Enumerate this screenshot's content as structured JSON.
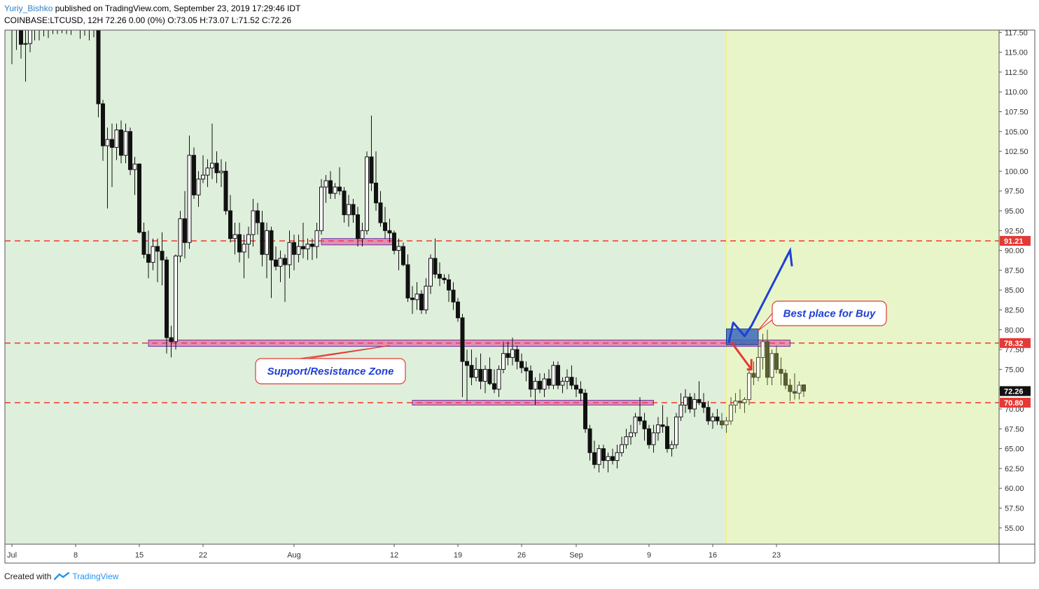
{
  "header": {
    "author": "Yuriy_Bishko",
    "published_text": "published on TradingView.com, September 23, 2019 17:29:46 IDT",
    "symbol_line": "COINBASE:LTCUSD, 12H  72.26 0.00 (0%)  O:73.05 H:73.07 L:71.52 C:72.26"
  },
  "footer": {
    "created_with": "Created with",
    "brand": "TradingView"
  },
  "colors": {
    "background_green": "#deefdb",
    "background_yellow": "#e8f5c8",
    "yellow_divider": "#f3f08a",
    "dashed_red": "#f44336",
    "zone_pink": "#e83e8c",
    "buy_box": "#3b6ab8",
    "arrow_blue": "#1f3fd6",
    "arrow_red": "#e53935",
    "candle": "#111111"
  },
  "chart_data": {
    "type": "candlestick",
    "ylim": [
      52.5,
      117.5
    ],
    "y_ticks": [
      "55.00",
      "57.50",
      "60.00",
      "62.50",
      "65.00",
      "67.50",
      "70.00",
      "72.50",
      "75.00",
      "77.50",
      "80.00",
      "82.50",
      "85.00",
      "87.50",
      "90.00",
      "92.50",
      "95.00",
      "97.50",
      "100.00",
      "102.50",
      "105.00",
      "107.50",
      "110.00",
      "112.50",
      "115.00",
      "117.50"
    ],
    "x_ticks": [
      {
        "label": "Jul",
        "t": 0
      },
      {
        "label": "8",
        "t": 14
      },
      {
        "label": "15",
        "t": 28
      },
      {
        "label": "22",
        "t": 42
      },
      {
        "label": "Aug",
        "t": 62
      },
      {
        "label": "12",
        "t": 84
      },
      {
        "label": "19",
        "t": 98
      },
      {
        "label": "26",
        "t": 112
      },
      {
        "label": "Sep",
        "t": 124
      },
      {
        "label": "9",
        "t": 140
      },
      {
        "label": "16",
        "t": 154
      },
      {
        "label": "23",
        "t": 168
      }
    ],
    "horizontal_levels": [
      {
        "value": 91.21,
        "label": "91.21"
      },
      {
        "value": 78.32,
        "label": "78.32"
      },
      {
        "value": 70.8,
        "label": "70.80"
      }
    ],
    "current_price": {
      "value": 72.26,
      "label": "72.26"
    },
    "zones": [
      {
        "t0": 30,
        "t1": 171,
        "low": 77.9,
        "high": 78.7
      },
      {
        "t0": 68,
        "t1": 84,
        "low": 90.7,
        "high": 91.5
      },
      {
        "t0": 88,
        "t1": 141,
        "low": 70.5,
        "high": 71.1
      }
    ],
    "buy_box": {
      "t0": 157,
      "t1": 164,
      "low": 78.1,
      "high": 80.1
    },
    "forecast_zone_start": 157,
    "annotations": [
      {
        "id": "sr",
        "text": "Support/Resistance Zone"
      },
      {
        "id": "buy",
        "text": "Best place for Buy"
      }
    ],
    "candles": [
      {
        "o": 118.8,
        "h": 119.5,
        "l": 113.5,
        "c": 117.9
      },
      {
        "o": 118.2,
        "h": 120.5,
        "l": 115.3,
        "c": 119.4
      },
      {
        "o": 118.5,
        "h": 119.6,
        "l": 114.2,
        "c": 116.0
      },
      {
        "o": 116.0,
        "h": 117.9,
        "l": 111.3,
        "c": 116.1
      },
      {
        "o": 116.1,
        "h": 119.4,
        "l": 115.0,
        "c": 118.8
      },
      {
        "o": 118.9,
        "h": 119.8,
        "l": 116.5,
        "c": 117.9
      },
      {
        "o": 117.9,
        "h": 119.3,
        "l": 116.5,
        "c": 118.2
      },
      {
        "o": 118.2,
        "h": 119.2,
        "l": 117.0,
        "c": 118.1
      },
      {
        "o": 118.1,
        "h": 119.3,
        "l": 116.8,
        "c": 118.5
      },
      {
        "o": 118.5,
        "h": 119.0,
        "l": 117.3,
        "c": 117.9
      },
      {
        "o": 117.9,
        "h": 119.0,
        "l": 117.3,
        "c": 118.5
      },
      {
        "o": 118.5,
        "h": 119.5,
        "l": 117.4,
        "c": 118.6
      },
      {
        "o": 118.6,
        "h": 119.2,
        "l": 117.3,
        "c": 117.9
      },
      {
        "o": 117.9,
        "h": 118.9,
        "l": 117.2,
        "c": 118.6
      },
      {
        "o": 118.6,
        "h": 119.5,
        "l": 117.8,
        "c": 118.3
      },
      {
        "o": 118.3,
        "h": 119.0,
        "l": 116.7,
        "c": 118.5
      },
      {
        "o": 118.5,
        "h": 119.8,
        "l": 117.1,
        "c": 118.0
      },
      {
        "o": 118.0,
        "h": 118.8,
        "l": 116.5,
        "c": 117.8
      },
      {
        "o": 117.8,
        "h": 118.5,
        "l": 116.9,
        "c": 118.1
      },
      {
        "o": 118.1,
        "h": 118.5,
        "l": 106.8,
        "c": 108.5
      },
      {
        "o": 108.5,
        "h": 109.0,
        "l": 101.3,
        "c": 103.2
      },
      {
        "o": 103.2,
        "h": 105.5,
        "l": 95.3,
        "c": 104.0
      },
      {
        "o": 104.0,
        "h": 106.0,
        "l": 98.0,
        "c": 103.0
      },
      {
        "o": 103.0,
        "h": 106.0,
        "l": 101.4,
        "c": 105.2
      },
      {
        "o": 105.2,
        "h": 106.4,
        "l": 101.0,
        "c": 102.0
      },
      {
        "o": 102.0,
        "h": 106.0,
        "l": 101.0,
        "c": 105.0
      },
      {
        "o": 105.0,
        "h": 105.5,
        "l": 99.5,
        "c": 100.2
      },
      {
        "o": 100.2,
        "h": 101.8,
        "l": 97.0,
        "c": 100.9
      },
      {
        "o": 100.9,
        "h": 101.0,
        "l": 92.1,
        "c": 92.3
      },
      {
        "o": 92.3,
        "h": 93.5,
        "l": 89.0,
        "c": 89.5
      },
      {
        "o": 89.5,
        "h": 92.5,
        "l": 86.5,
        "c": 88.5
      },
      {
        "o": 88.5,
        "h": 91.5,
        "l": 87.5,
        "c": 90.5
      },
      {
        "o": 90.5,
        "h": 91.5,
        "l": 86.0,
        "c": 89.9
      },
      {
        "o": 89.9,
        "h": 92.3,
        "l": 85.6,
        "c": 88.8
      },
      {
        "o": 88.8,
        "h": 89.2,
        "l": 77.0,
        "c": 79.0
      },
      {
        "o": 79.0,
        "h": 80.5,
        "l": 76.5,
        "c": 78.5
      },
      {
        "o": 78.5,
        "h": 89.5,
        "l": 77.5,
        "c": 89.3
      },
      {
        "o": 89.3,
        "h": 95.0,
        "l": 88.5,
        "c": 94.0
      },
      {
        "o": 94.0,
        "h": 97.5,
        "l": 89.0,
        "c": 91.0
      },
      {
        "o": 91.0,
        "h": 104.5,
        "l": 90.2,
        "c": 102.0
      },
      {
        "o": 102.0,
        "h": 103.0,
        "l": 96.5,
        "c": 97.0
      },
      {
        "o": 97.0,
        "h": 100.0,
        "l": 95.5,
        "c": 99.0
      },
      {
        "o": 99.0,
        "h": 102.0,
        "l": 98.5,
        "c": 99.5
      },
      {
        "o": 99.5,
        "h": 101.5,
        "l": 98.0,
        "c": 100.4
      },
      {
        "o": 100.4,
        "h": 106.0,
        "l": 99.0,
        "c": 101.0
      },
      {
        "o": 101.0,
        "h": 102.5,
        "l": 98.5,
        "c": 99.8
      },
      {
        "o": 99.8,
        "h": 101.5,
        "l": 98.0,
        "c": 100.0
      },
      {
        "o": 100.0,
        "h": 101.2,
        "l": 94.5,
        "c": 95.0
      },
      {
        "o": 95.0,
        "h": 97.0,
        "l": 91.0,
        "c": 91.5
      },
      {
        "o": 91.5,
        "h": 93.5,
        "l": 89.5,
        "c": 92.0
      },
      {
        "o": 92.0,
        "h": 93.5,
        "l": 88.5,
        "c": 89.8
      },
      {
        "o": 89.8,
        "h": 92.0,
        "l": 86.5,
        "c": 90.8
      },
      {
        "o": 90.8,
        "h": 93.0,
        "l": 89.0,
        "c": 92.0
      },
      {
        "o": 92.0,
        "h": 96.5,
        "l": 90.5,
        "c": 95.0
      },
      {
        "o": 95.0,
        "h": 96.0,
        "l": 92.0,
        "c": 93.5
      },
      {
        "o": 93.5,
        "h": 95.0,
        "l": 88.0,
        "c": 89.5
      },
      {
        "o": 89.5,
        "h": 93.5,
        "l": 86.5,
        "c": 92.5
      },
      {
        "o": 92.5,
        "h": 93.0,
        "l": 84.0,
        "c": 88.8
      },
      {
        "o": 88.8,
        "h": 90.5,
        "l": 87.5,
        "c": 88.0
      },
      {
        "o": 88.0,
        "h": 90.0,
        "l": 86.0,
        "c": 89.0
      },
      {
        "o": 89.0,
        "h": 89.5,
        "l": 83.5,
        "c": 88.2
      },
      {
        "o": 88.2,
        "h": 92.5,
        "l": 86.5,
        "c": 91.0
      },
      {
        "o": 91.0,
        "h": 92.0,
        "l": 87.5,
        "c": 89.5
      },
      {
        "o": 89.5,
        "h": 92.0,
        "l": 88.5,
        "c": 90.5
      },
      {
        "o": 90.5,
        "h": 93.5,
        "l": 89.0,
        "c": 90.2
      },
      {
        "o": 90.2,
        "h": 91.5,
        "l": 88.8,
        "c": 90.8
      },
      {
        "o": 90.8,
        "h": 91.5,
        "l": 88.8,
        "c": 90.5
      },
      {
        "o": 90.5,
        "h": 93.5,
        "l": 89.0,
        "c": 92.5
      },
      {
        "o": 92.5,
        "h": 99.0,
        "l": 92.0,
        "c": 98.0
      },
      {
        "o": 98.0,
        "h": 99.5,
        "l": 96.0,
        "c": 98.8
      },
      {
        "o": 98.8,
        "h": 100.0,
        "l": 96.5,
        "c": 97.2
      },
      {
        "o": 97.2,
        "h": 98.5,
        "l": 96.5,
        "c": 98.0
      },
      {
        "o": 98.0,
        "h": 100.5,
        "l": 97.0,
        "c": 97.5
      },
      {
        "o": 97.5,
        "h": 98.0,
        "l": 93.5,
        "c": 94.5
      },
      {
        "o": 94.5,
        "h": 97.0,
        "l": 93.0,
        "c": 95.8
      },
      {
        "o": 95.8,
        "h": 96.5,
        "l": 93.5,
        "c": 94.5
      },
      {
        "o": 94.5,
        "h": 95.5,
        "l": 90.5,
        "c": 91.5
      },
      {
        "o": 91.5,
        "h": 93.5,
        "l": 90.5,
        "c": 92.5
      },
      {
        "o": 92.5,
        "h": 102.5,
        "l": 92.0,
        "c": 101.8
      },
      {
        "o": 101.8,
        "h": 107.0,
        "l": 97.5,
        "c": 98.5
      },
      {
        "o": 98.5,
        "h": 102.5,
        "l": 95.0,
        "c": 96.0
      },
      {
        "o": 96.0,
        "h": 97.5,
        "l": 93.0,
        "c": 93.5
      },
      {
        "o": 93.5,
        "h": 95.5,
        "l": 91.5,
        "c": 92.5
      },
      {
        "o": 92.5,
        "h": 94.0,
        "l": 91.0,
        "c": 92.2
      },
      {
        "o": 92.2,
        "h": 92.5,
        "l": 89.5,
        "c": 90.0
      },
      {
        "o": 90.0,
        "h": 91.5,
        "l": 87.5,
        "c": 90.5
      },
      {
        "o": 90.5,
        "h": 91.0,
        "l": 88.0,
        "c": 88.2
      },
      {
        "o": 88.2,
        "h": 89.5,
        "l": 83.5,
        "c": 84.0
      },
      {
        "o": 84.0,
        "h": 85.5,
        "l": 82.0,
        "c": 83.8
      },
      {
        "o": 83.8,
        "h": 86.0,
        "l": 82.5,
        "c": 84.5
      },
      {
        "o": 84.5,
        "h": 85.0,
        "l": 82.0,
        "c": 82.5
      },
      {
        "o": 82.5,
        "h": 86.5,
        "l": 82.0,
        "c": 85.5
      },
      {
        "o": 85.5,
        "h": 89.5,
        "l": 84.5,
        "c": 89.0
      },
      {
        "o": 89.0,
        "h": 91.5,
        "l": 86.5,
        "c": 87.0
      },
      {
        "o": 87.0,
        "h": 88.5,
        "l": 85.5,
        "c": 86.5
      },
      {
        "o": 86.5,
        "h": 87.0,
        "l": 85.8,
        "c": 86.3
      },
      {
        "o": 86.3,
        "h": 87.0,
        "l": 83.5,
        "c": 85.0
      },
      {
        "o": 85.0,
        "h": 86.0,
        "l": 82.5,
        "c": 83.5
      },
      {
        "o": 83.5,
        "h": 84.0,
        "l": 81.0,
        "c": 81.5
      },
      {
        "o": 81.5,
        "h": 82.0,
        "l": 71.5,
        "c": 76.0
      },
      {
        "o": 76.0,
        "h": 77.5,
        "l": 71.0,
        "c": 75.5
      },
      {
        "o": 75.5,
        "h": 77.5,
        "l": 73.0,
        "c": 74.0
      },
      {
        "o": 74.0,
        "h": 76.5,
        "l": 73.5,
        "c": 75.0
      },
      {
        "o": 75.0,
        "h": 77.0,
        "l": 72.5,
        "c": 73.5
      },
      {
        "o": 73.5,
        "h": 75.5,
        "l": 72.0,
        "c": 75.0
      },
      {
        "o": 75.0,
        "h": 76.5,
        "l": 73.0,
        "c": 73.2
      },
      {
        "o": 73.2,
        "h": 75.0,
        "l": 72.0,
        "c": 72.5
      },
      {
        "o": 72.5,
        "h": 75.5,
        "l": 71.5,
        "c": 75.0
      },
      {
        "o": 75.0,
        "h": 78.5,
        "l": 74.5,
        "c": 77.0
      },
      {
        "o": 77.0,
        "h": 78.5,
        "l": 75.5,
        "c": 76.5
      },
      {
        "o": 76.5,
        "h": 79.0,
        "l": 75.5,
        "c": 77.5
      },
      {
        "o": 77.5,
        "h": 78.0,
        "l": 75.0,
        "c": 76.0
      },
      {
        "o": 76.0,
        "h": 77.0,
        "l": 74.5,
        "c": 75.2
      },
      {
        "o": 75.2,
        "h": 76.0,
        "l": 73.5,
        "c": 74.8
      },
      {
        "o": 74.8,
        "h": 75.5,
        "l": 71.5,
        "c": 72.5
      },
      {
        "o": 72.5,
        "h": 74.0,
        "l": 70.5,
        "c": 73.5
      },
      {
        "o": 73.5,
        "h": 74.5,
        "l": 72.0,
        "c": 72.5
      },
      {
        "o": 72.5,
        "h": 74.5,
        "l": 71.5,
        "c": 73.8
      },
      {
        "o": 73.8,
        "h": 75.0,
        "l": 72.5,
        "c": 73.0
      },
      {
        "o": 73.0,
        "h": 76.0,
        "l": 72.5,
        "c": 75.5
      },
      {
        "o": 75.5,
        "h": 76.0,
        "l": 72.5,
        "c": 73.0
      },
      {
        "o": 73.0,
        "h": 74.0,
        "l": 72.0,
        "c": 73.5
      },
      {
        "o": 73.5,
        "h": 75.0,
        "l": 72.5,
        "c": 74.0
      },
      {
        "o": 74.0,
        "h": 75.5,
        "l": 72.5,
        "c": 73.0
      },
      {
        "o": 73.0,
        "h": 74.0,
        "l": 71.5,
        "c": 72.5
      },
      {
        "o": 72.5,
        "h": 73.5,
        "l": 71.0,
        "c": 72.0
      },
      {
        "o": 72.0,
        "h": 72.5,
        "l": 67.0,
        "c": 67.5
      },
      {
        "o": 67.5,
        "h": 68.0,
        "l": 63.5,
        "c": 64.5
      },
      {
        "o": 64.5,
        "h": 66.0,
        "l": 62.5,
        "c": 63.0
      },
      {
        "o": 63.0,
        "h": 65.5,
        "l": 62.0,
        "c": 65.0
      },
      {
        "o": 65.0,
        "h": 65.5,
        "l": 62.5,
        "c": 63.5
      },
      {
        "o": 63.5,
        "h": 64.5,
        "l": 62.0,
        "c": 64.0
      },
      {
        "o": 64.0,
        "h": 65.0,
        "l": 63.0,
        "c": 63.5
      },
      {
        "o": 63.5,
        "h": 65.5,
        "l": 62.5,
        "c": 64.5
      },
      {
        "o": 64.5,
        "h": 66.5,
        "l": 64.0,
        "c": 65.5
      },
      {
        "o": 65.5,
        "h": 67.5,
        "l": 65.0,
        "c": 66.5
      },
      {
        "o": 66.5,
        "h": 68.0,
        "l": 65.5,
        "c": 67.0
      },
      {
        "o": 67.0,
        "h": 69.5,
        "l": 66.5,
        "c": 69.0
      },
      {
        "o": 69.0,
        "h": 71.5,
        "l": 68.0,
        "c": 68.5
      },
      {
        "o": 68.5,
        "h": 69.5,
        "l": 66.0,
        "c": 67.5
      },
      {
        "o": 67.5,
        "h": 68.0,
        "l": 65.0,
        "c": 65.5
      },
      {
        "o": 65.5,
        "h": 68.0,
        "l": 64.5,
        "c": 67.0
      },
      {
        "o": 67.0,
        "h": 69.0,
        "l": 66.0,
        "c": 68.0
      },
      {
        "o": 68.0,
        "h": 70.5,
        "l": 67.0,
        "c": 67.8
      },
      {
        "o": 67.8,
        "h": 69.0,
        "l": 64.5,
        "c": 65.0
      },
      {
        "o": 65.0,
        "h": 66.0,
        "l": 64.0,
        "c": 65.5
      },
      {
        "o": 65.5,
        "h": 69.5,
        "l": 65.0,
        "c": 69.0
      },
      {
        "o": 69.0,
        "h": 72.0,
        "l": 68.5,
        "c": 70.5
      },
      {
        "o": 70.5,
        "h": 72.5,
        "l": 69.5,
        "c": 71.5
      },
      {
        "o": 71.5,
        "h": 72.0,
        "l": 69.5,
        "c": 70.0
      },
      {
        "o": 70.0,
        "h": 72.0,
        "l": 69.0,
        "c": 71.2
      },
      {
        "o": 71.2,
        "h": 73.5,
        "l": 70.5,
        "c": 70.8
      },
      {
        "o": 70.8,
        "h": 72.0,
        "l": 69.5,
        "c": 70.2
      },
      {
        "o": 70.2,
        "h": 71.0,
        "l": 68.0,
        "c": 68.5
      },
      {
        "o": 68.5,
        "h": 69.5,
        "l": 67.5,
        "c": 69.0
      },
      {
        "o": 69.0,
        "h": 70.0,
        "l": 68.0,
        "c": 68.5
      },
      {
        "o": 68.5,
        "h": 69.5,
        "l": 67.5,
        "c": 68.0
      },
      {
        "o": 68.0,
        "h": 69.0,
        "l": 67.0,
        "c": 68.5
      },
      {
        "o": 68.5,
        "h": 71.5,
        "l": 68.0,
        "c": 70.5
      },
      {
        "o": 70.5,
        "h": 72.0,
        "l": 69.5,
        "c": 71.0
      },
      {
        "o": 71.0,
        "h": 72.5,
        "l": 70.0,
        "c": 70.8
      },
      {
        "o": 70.8,
        "h": 71.5,
        "l": 69.5,
        "c": 71.2
      },
      {
        "o": 71.2,
        "h": 75.0,
        "l": 70.5,
        "c": 74.5
      },
      {
        "o": 74.5,
        "h": 76.0,
        "l": 73.0,
        "c": 74.0
      },
      {
        "o": 74.0,
        "h": 78.0,
        "l": 73.5,
        "c": 76.5
      },
      {
        "o": 76.5,
        "h": 79.5,
        "l": 75.0,
        "c": 78.5
      },
      {
        "o": 78.5,
        "h": 80.0,
        "l": 73.0,
        "c": 74.0
      },
      {
        "o": 74.0,
        "h": 77.5,
        "l": 73.0,
        "c": 77.0
      },
      {
        "o": 77.0,
        "h": 78.0,
        "l": 74.5,
        "c": 75.0
      },
      {
        "o": 75.0,
        "h": 76.5,
        "l": 73.0,
        "c": 74.5
      },
      {
        "o": 74.5,
        "h": 75.0,
        "l": 72.5,
        "c": 73.0
      },
      {
        "o": 73.0,
        "h": 73.8,
        "l": 71.0,
        "c": 72.2
      },
      {
        "o": 72.2,
        "h": 74.5,
        "l": 71.2,
        "c": 72.0
      },
      {
        "o": 72.0,
        "h": 73.5,
        "l": 71.2,
        "c": 73.0
      },
      {
        "o": 73.05,
        "h": 73.07,
        "l": 71.52,
        "c": 72.26
      }
    ]
  }
}
